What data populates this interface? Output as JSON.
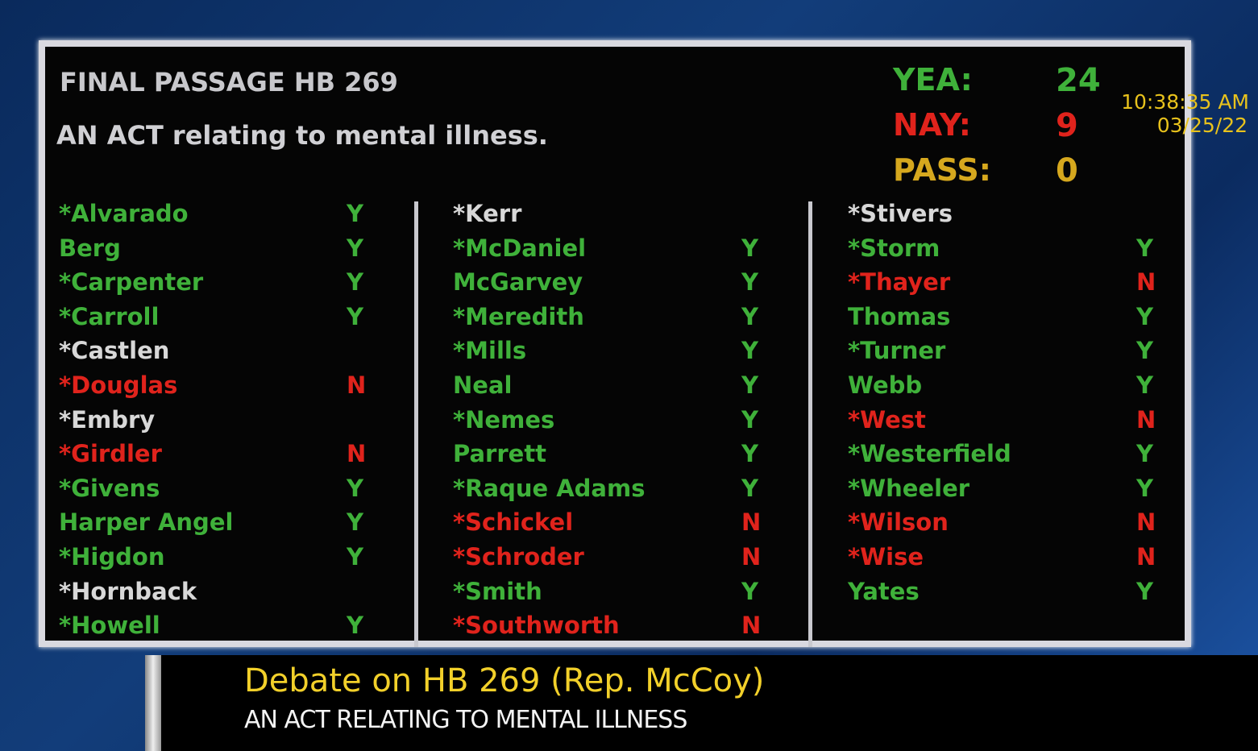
{
  "board": {
    "title": "FINAL PASSAGE HB 269",
    "subtitle": "AN ACT relating to mental illness.",
    "tally": [
      {
        "label": "YEA:",
        "value": 24,
        "color": "#3fb13a"
      },
      {
        "label": "NAY:",
        "value": 9,
        "color": "#e0231c"
      },
      {
        "label": "PASS:",
        "value": 0,
        "color": "#d6a81e"
      }
    ],
    "time": "10:38:35 AM",
    "date": "03/25/22",
    "columns": [
      [
        {
          "name": "*Alvarado",
          "vote": "Y",
          "color": "#3fb13a"
        },
        {
          "name": "Berg",
          "vote": "Y",
          "color": "#3fb13a"
        },
        {
          "name": "*Carpenter",
          "vote": "Y",
          "color": "#3fb13a"
        },
        {
          "name": "*Carroll",
          "vote": "Y",
          "color": "#3fb13a"
        },
        {
          "name": "*Castlen",
          "color": "#d8d8d8"
        },
        {
          "name": "*Douglas",
          "vote": "N",
          "color": "#e0231c"
        },
        {
          "name": "*Embry",
          "color": "#d8d8d8"
        },
        {
          "name": "*Girdler",
          "vote": "N",
          "color": "#e0231c"
        },
        {
          "name": "*Givens",
          "vote": "Y",
          "color": "#3fb13a"
        },
        {
          "name": "Harper Angel",
          "vote": "Y",
          "color": "#3fb13a"
        },
        {
          "name": "*Higdon",
          "vote": "Y",
          "color": "#3fb13a"
        },
        {
          "name": "*Hornback",
          "color": "#d8d8d8"
        },
        {
          "name": "*Howell",
          "vote": "Y",
          "color": "#3fb13a"
        }
      ],
      [
        {
          "name": "*Kerr",
          "color": "#d8d8d8"
        },
        {
          "name": "*McDaniel",
          "vote": "Y",
          "color": "#3fb13a"
        },
        {
          "name": "McGarvey",
          "vote": "Y",
          "color": "#3fb13a"
        },
        {
          "name": "*Meredith",
          "vote": "Y",
          "color": "#3fb13a"
        },
        {
          "name": "*Mills",
          "vote": "Y",
          "color": "#3fb13a"
        },
        {
          "name": "Neal",
          "vote": "Y",
          "color": "#3fb13a"
        },
        {
          "name": "*Nemes",
          "vote": "Y",
          "color": "#3fb13a"
        },
        {
          "name": "Parrett",
          "vote": "Y",
          "color": "#3fb13a"
        },
        {
          "name": "*Raque Adams",
          "vote": "Y",
          "color": "#3fb13a"
        },
        {
          "name": "*Schickel",
          "vote": "N",
          "color": "#e0231c"
        },
        {
          "name": "*Schroder",
          "vote": "N",
          "color": "#e0231c"
        },
        {
          "name": "*Smith",
          "vote": "Y",
          "color": "#3fb13a"
        },
        {
          "name": "*Southworth",
          "vote": "N",
          "color": "#e0231c"
        }
      ],
      [
        {
          "name": "*Stivers",
          "color": "#d8d8d8"
        },
        {
          "name": "*Storm",
          "vote": "Y",
          "color": "#3fb13a"
        },
        {
          "name": "*Thayer",
          "vote": "N",
          "color": "#e0231c"
        },
        {
          "name": "Thomas",
          "vote": "Y",
          "color": "#3fb13a"
        },
        {
          "name": "*Turner",
          "vote": "Y",
          "color": "#3fb13a"
        },
        {
          "name": "Webb",
          "vote": "Y",
          "color": "#3fb13a"
        },
        {
          "name": "*West",
          "vote": "N",
          "color": "#e0231c"
        },
        {
          "name": "*Westerfield",
          "vote": "Y",
          "color": "#3fb13a"
        },
        {
          "name": "*Wheeler",
          "vote": "Y",
          "color": "#3fb13a"
        },
        {
          "name": "*Wilson",
          "vote": "N",
          "color": "#e0231c"
        },
        {
          "name": "*Wise",
          "vote": "N",
          "color": "#e0231c"
        },
        {
          "name": "Yates",
          "vote": "Y",
          "color": "#3fb13a"
        }
      ]
    ]
  },
  "lower_third": {
    "title": "Debate on HB 269 (Rep. McCoy)",
    "subtitle": "AN  ACT RELATING TO MENTAL ILLNESS"
  }
}
